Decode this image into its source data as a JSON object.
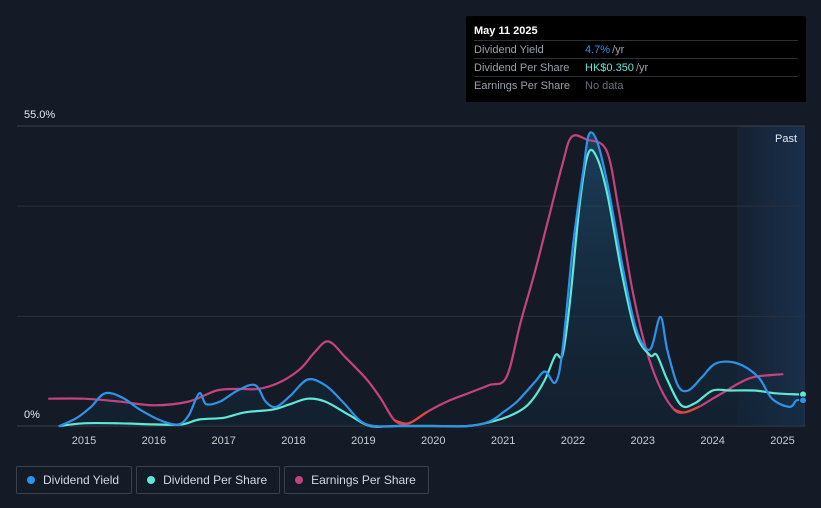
{
  "tooltip": {
    "date": "May 11 2025",
    "rows": [
      {
        "label": "Dividend Yield",
        "value": "4.7%",
        "unit": "/yr",
        "color": "#2e93e8"
      },
      {
        "label": "Dividend Per Share",
        "value": "HK$0.350",
        "unit": "/yr",
        "color": "#5ee8d6"
      },
      {
        "label": "Earnings Per Share",
        "value": "No data",
        "unit": "",
        "color": "#6b7280"
      }
    ]
  },
  "legend": [
    {
      "label": "Dividend Yield",
      "color": "#2e93e8"
    },
    {
      "label": "Dividend Per Share",
      "color": "#5ee8d6"
    },
    {
      "label": "Earnings Per Share",
      "color": "#c2437e"
    }
  ],
  "chart_data": {
    "type": "line",
    "y_top_label": "55.0%",
    "y_bottom_label": "0%",
    "ylim": [
      0,
      55
    ],
    "xlim": [
      2014.5,
      2025.35
    ],
    "x_ticks": [
      "2015",
      "2016",
      "2017",
      "2018",
      "2019",
      "2020",
      "2021",
      "2022",
      "2023",
      "2024",
      "2025"
    ],
    "past_label": "Past",
    "past_start": 2024.35,
    "negative_color": "#e8453c",
    "series": [
      {
        "name": "Dividend Yield",
        "color": "#2e93e8",
        "points": [
          [
            2014.65,
            0
          ],
          [
            2014.9,
            1.5
          ],
          [
            2015.1,
            3.5
          ],
          [
            2015.3,
            6
          ],
          [
            2015.55,
            5.2
          ],
          [
            2015.8,
            3
          ],
          [
            2016.1,
            1
          ],
          [
            2016.35,
            0.3
          ],
          [
            2016.5,
            2
          ],
          [
            2016.65,
            6
          ],
          [
            2016.75,
            4
          ],
          [
            2016.95,
            4.5
          ],
          [
            2017.2,
            6.5
          ],
          [
            2017.45,
            7.5
          ],
          [
            2017.6,
            4.5
          ],
          [
            2017.75,
            3.5
          ],
          [
            2017.95,
            5.5
          ],
          [
            2018.2,
            8.5
          ],
          [
            2018.45,
            7.5
          ],
          [
            2018.7,
            4.5
          ],
          [
            2018.95,
            1
          ],
          [
            2019.15,
            0
          ],
          [
            2019.5,
            0
          ],
          [
            2020.0,
            0
          ],
          [
            2020.5,
            0
          ],
          [
            2020.8,
            0.8
          ],
          [
            2021.0,
            2.5
          ],
          [
            2021.2,
            4.5
          ],
          [
            2021.45,
            8
          ],
          [
            2021.6,
            10
          ],
          [
            2021.75,
            8
          ],
          [
            2021.85,
            14
          ],
          [
            2022.0,
            33
          ],
          [
            2022.15,
            47
          ],
          [
            2022.23,
            53.5
          ],
          [
            2022.35,
            52
          ],
          [
            2022.5,
            44
          ],
          [
            2022.7,
            30
          ],
          [
            2022.9,
            18
          ],
          [
            2023.1,
            14
          ],
          [
            2023.25,
            20
          ],
          [
            2023.35,
            14
          ],
          [
            2023.5,
            7.5
          ],
          [
            2023.65,
            6.5
          ],
          [
            2023.85,
            9
          ],
          [
            2024.05,
            11.5
          ],
          [
            2024.35,
            11.5
          ],
          [
            2024.65,
            9
          ],
          [
            2024.85,
            5
          ],
          [
            2025.1,
            3.5
          ],
          [
            2025.2,
            4.7
          ],
          [
            2025.3,
            4.7
          ]
        ]
      },
      {
        "name": "Dividend Per Share",
        "color": "#5ee8d6",
        "points": [
          [
            2014.65,
            0
          ],
          [
            2015.0,
            0.5
          ],
          [
            2015.5,
            0.5
          ],
          [
            2016.0,
            0.3
          ],
          [
            2016.4,
            0.3
          ],
          [
            2016.65,
            1.2
          ],
          [
            2017.0,
            1.5
          ],
          [
            2017.3,
            2.5
          ],
          [
            2017.7,
            3
          ],
          [
            2017.95,
            4
          ],
          [
            2018.2,
            5
          ],
          [
            2018.45,
            4.5
          ],
          [
            2018.8,
            2
          ],
          [
            2019.1,
            0
          ],
          [
            2019.5,
            0
          ],
          [
            2020.0,
            0
          ],
          [
            2020.5,
            0
          ],
          [
            2020.9,
            1
          ],
          [
            2021.2,
            2.5
          ],
          [
            2021.4,
            4.5
          ],
          [
            2021.6,
            8.5
          ],
          [
            2021.75,
            13
          ],
          [
            2021.85,
            13
          ],
          [
            2021.95,
            22
          ],
          [
            2022.1,
            41
          ],
          [
            2022.22,
            50
          ],
          [
            2022.35,
            49
          ],
          [
            2022.5,
            42
          ],
          [
            2022.7,
            28
          ],
          [
            2022.9,
            17
          ],
          [
            2023.1,
            13
          ],
          [
            2023.2,
            13
          ],
          [
            2023.35,
            8.5
          ],
          [
            2023.55,
            3.8
          ],
          [
            2023.75,
            4.2
          ],
          [
            2024.0,
            6.5
          ],
          [
            2024.25,
            6.5
          ],
          [
            2024.6,
            6.5
          ],
          [
            2024.9,
            6
          ],
          [
            2025.2,
            5.8
          ],
          [
            2025.3,
            5.8
          ]
        ]
      },
      {
        "name": "Earnings Per Share",
        "color": "#c2437e",
        "points": [
          [
            2014.5,
            5
          ],
          [
            2015.0,
            5
          ],
          [
            2015.5,
            4.5
          ],
          [
            2016.0,
            3.8
          ],
          [
            2016.5,
            4.5
          ],
          [
            2016.9,
            6.5
          ],
          [
            2017.2,
            6.8
          ],
          [
            2017.5,
            6.8
          ],
          [
            2017.8,
            8
          ],
          [
            2018.1,
            10.5
          ],
          [
            2018.3,
            13.5
          ],
          [
            2018.5,
            15.5
          ],
          [
            2018.75,
            12.5
          ],
          [
            2019.05,
            8.5
          ],
          [
            2019.25,
            5
          ],
          [
            2019.45,
            1
          ],
          [
            2019.65,
            0.5
          ],
          [
            2019.9,
            2.5
          ],
          [
            2020.2,
            4.5
          ],
          [
            2020.5,
            6
          ],
          [
            2020.8,
            7.5
          ],
          [
            2021.05,
            9
          ],
          [
            2021.25,
            19
          ],
          [
            2021.45,
            28
          ],
          [
            2021.65,
            38
          ],
          [
            2021.85,
            48
          ],
          [
            2021.98,
            53
          ],
          [
            2022.2,
            52.5
          ],
          [
            2022.48,
            50.5
          ],
          [
            2022.65,
            40
          ],
          [
            2022.85,
            25
          ],
          [
            2023.05,
            14
          ],
          [
            2023.25,
            7
          ],
          [
            2023.45,
            3
          ],
          [
            2023.6,
            2.5
          ],
          [
            2023.8,
            3.5
          ],
          [
            2024.0,
            5
          ],
          [
            2024.2,
            6.5
          ],
          [
            2024.4,
            8
          ],
          [
            2024.6,
            9
          ],
          [
            2025.0,
            9.5
          ]
        ]
      }
    ]
  }
}
